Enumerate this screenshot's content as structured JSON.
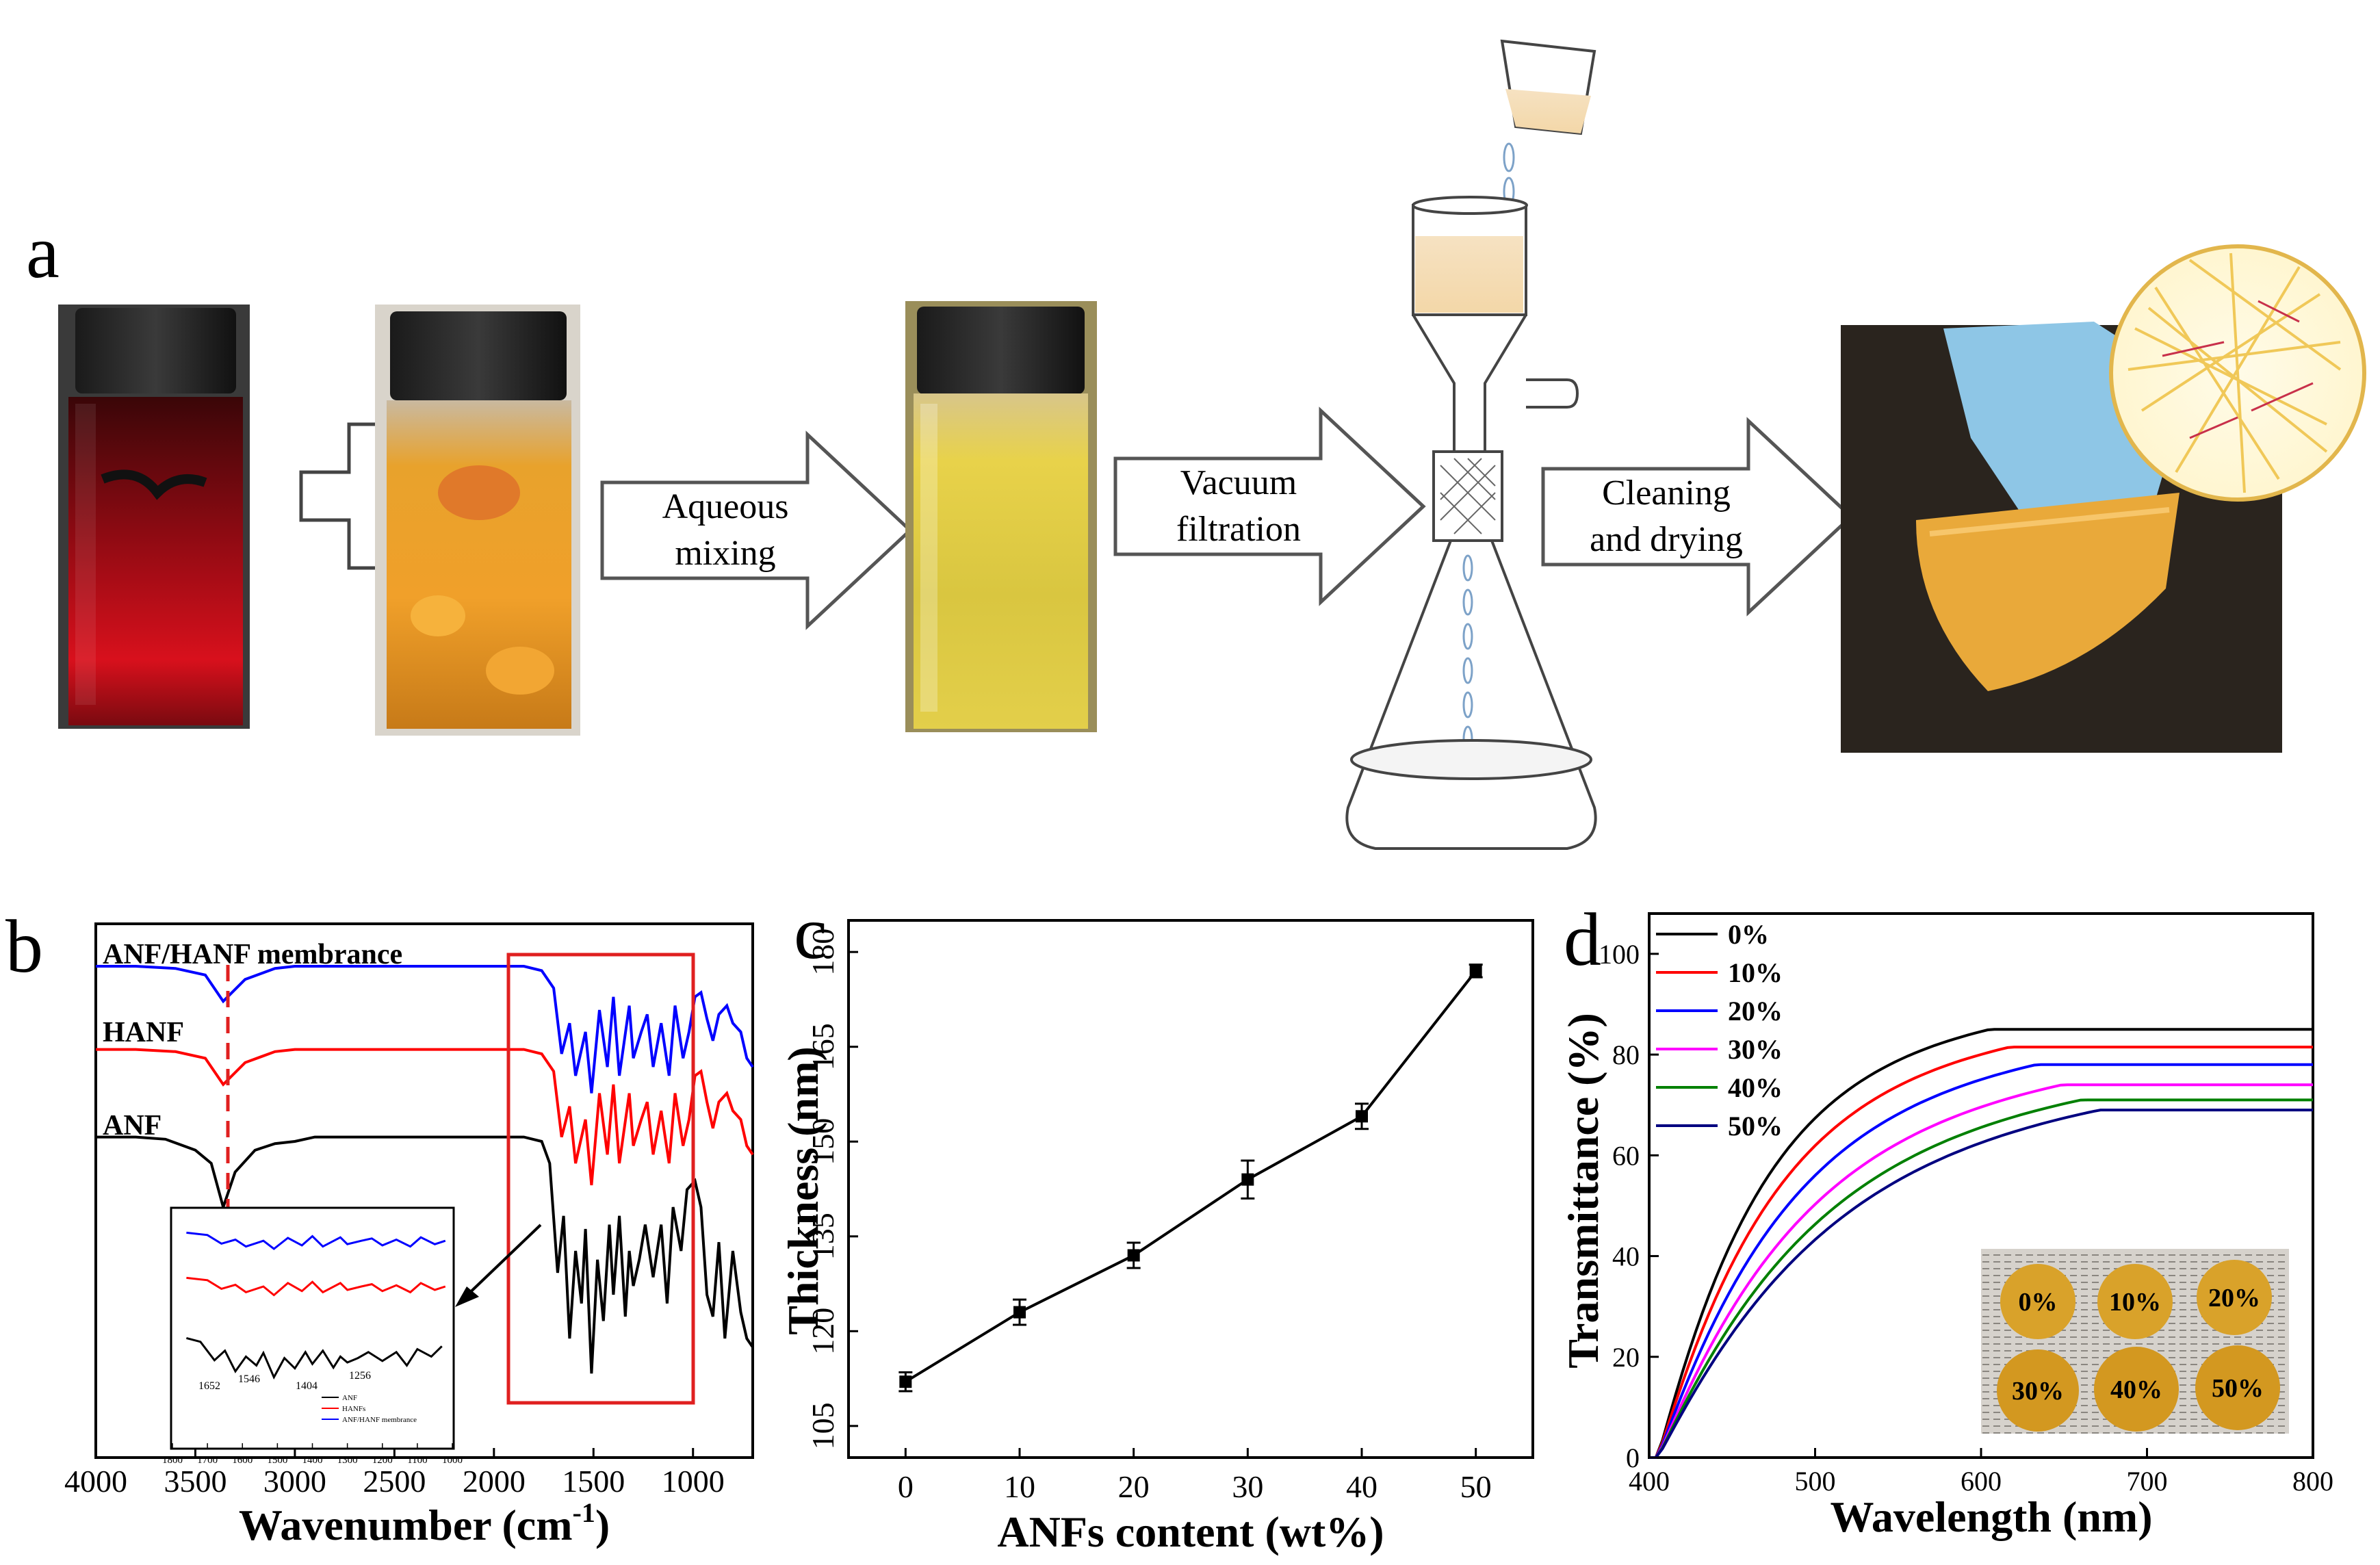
{
  "panel_labels": {
    "a": "a",
    "b": "b",
    "c": "c",
    "d": "d"
  },
  "process": {
    "step1": "Aqueous mixing",
    "step1_l1": "Aqueous",
    "step1_l2": "mixing",
    "step2_l1": "Vacuum",
    "step2_l2": "filtration",
    "step3_l1": "Cleaning",
    "step3_l2": "and drying",
    "colors": {
      "red_solution": "#c0101a",
      "orange_gel": "#f2a52a",
      "yellow_solution": "#e9d54a",
      "membrane": "#e9a93a",
      "glove": "#8ec6e6"
    }
  },
  "chart_data": [
    {
      "panel": "b",
      "type": "line",
      "xlabel": "Wavenumber (cm",
      "xlabel_sup": "-1",
      "xlabel_close": ")",
      "xlim": [
        4000,
        700
      ],
      "x_ticks": [
        4000,
        3500,
        3000,
        2500,
        2000,
        1500,
        1000
      ],
      "series": [
        {
          "name": "ANF/HANF membrance",
          "color": "#0000ff",
          "x": [
            4000,
            3800,
            3600,
            3450,
            3360,
            3250,
            3100,
            3000,
            2800,
            2600,
            2400,
            2200,
            2000,
            1850,
            1760,
            1700,
            1660,
            1620,
            1590,
            1540,
            1510,
            1470,
            1430,
            1400,
            1370,
            1320,
            1300,
            1260,
            1230,
            1200,
            1160,
            1120,
            1090,
            1050,
            1020,
            990,
            960,
            930,
            900,
            870,
            830,
            800,
            760,
            730,
            700
          ],
          "y": [
            0.95,
            0.95,
            0.945,
            0.93,
            0.87,
            0.92,
            0.945,
            0.95,
            0.95,
            0.95,
            0.95,
            0.95,
            0.95,
            0.95,
            0.94,
            0.9,
            0.75,
            0.82,
            0.7,
            0.8,
            0.66,
            0.85,
            0.72,
            0.88,
            0.7,
            0.86,
            0.74,
            0.8,
            0.84,
            0.72,
            0.82,
            0.7,
            0.86,
            0.74,
            0.8,
            0.88,
            0.89,
            0.83,
            0.78,
            0.84,
            0.86,
            0.82,
            0.8,
            0.74,
            0.72
          ]
        },
        {
          "name": "HANF",
          "color": "#ff0000",
          "x": [
            4000,
            3800,
            3600,
            3450,
            3360,
            3250,
            3100,
            3000,
            2800,
            2600,
            2400,
            2200,
            2000,
            1850,
            1760,
            1700,
            1660,
            1620,
            1590,
            1540,
            1510,
            1470,
            1430,
            1400,
            1370,
            1320,
            1300,
            1260,
            1230,
            1200,
            1160,
            1120,
            1090,
            1050,
            1020,
            990,
            960,
            930,
            900,
            870,
            830,
            800,
            760,
            730,
            700
          ],
          "y": [
            0.76,
            0.76,
            0.755,
            0.74,
            0.68,
            0.73,
            0.755,
            0.76,
            0.76,
            0.76,
            0.76,
            0.76,
            0.76,
            0.76,
            0.75,
            0.71,
            0.56,
            0.63,
            0.5,
            0.6,
            0.45,
            0.66,
            0.52,
            0.68,
            0.5,
            0.66,
            0.54,
            0.6,
            0.64,
            0.52,
            0.62,
            0.5,
            0.66,
            0.54,
            0.6,
            0.7,
            0.71,
            0.64,
            0.58,
            0.64,
            0.66,
            0.62,
            0.6,
            0.54,
            0.52
          ]
        },
        {
          "name": "ANF",
          "color": "#000000",
          "x": [
            4000,
            3800,
            3650,
            3500,
            3420,
            3360,
            3300,
            3200,
            3100,
            3000,
            2900,
            2800,
            2600,
            2400,
            2200,
            2000,
            1850,
            1760,
            1720,
            1680,
            1650,
            1620,
            1590,
            1560,
            1540,
            1510,
            1480,
            1450,
            1420,
            1400,
            1370,
            1340,
            1320,
            1300,
            1270,
            1240,
            1200,
            1160,
            1130,
            1100,
            1060,
            1030,
            990,
            960,
            930,
            900,
            870,
            840,
            800,
            760,
            730,
            700
          ],
          "y": [
            0.56,
            0.56,
            0.555,
            0.53,
            0.5,
            0.4,
            0.48,
            0.53,
            0.545,
            0.55,
            0.56,
            0.56,
            0.56,
            0.56,
            0.56,
            0.56,
            0.56,
            0.55,
            0.5,
            0.25,
            0.38,
            0.1,
            0.3,
            0.18,
            0.35,
            0.02,
            0.28,
            0.14,
            0.36,
            0.2,
            0.38,
            0.15,
            0.3,
            0.22,
            0.28,
            0.36,
            0.24,
            0.36,
            0.18,
            0.4,
            0.3,
            0.44,
            0.46,
            0.4,
            0.2,
            0.15,
            0.32,
            0.1,
            0.3,
            0.16,
            0.1,
            0.08
          ]
        }
      ],
      "annotation": "red highlighted region 1800-1000 cm-1 (zoomed in inset)",
      "inset": {
        "xlim": [
          1800,
          1000
        ],
        "x_ticks": [
          1800,
          1700,
          1600,
          1500,
          1400,
          1300,
          1200,
          1100,
          1000
        ],
        "peak_labels": [
          "1652",
          "1546",
          "1404",
          "1256"
        ],
        "legend": [
          "ANF",
          "HANFs",
          "ANF/HANF membrance"
        ]
      }
    },
    {
      "panel": "c",
      "type": "line",
      "xlabel": "ANFs content (wt%)",
      "ylabel": "Thickness (nm)",
      "xlim": [
        -5,
        55
      ],
      "ylim": [
        100,
        185
      ],
      "x_ticks": [
        0,
        10,
        20,
        30,
        40,
        50
      ],
      "y_ticks": [
        105,
        120,
        135,
        150,
        165,
        180
      ],
      "x": [
        0,
        10,
        20,
        30,
        40,
        50
      ],
      "values": [
        112,
        123,
        132,
        144,
        154,
        177
      ],
      "errors": [
        1.5,
        2,
        2,
        3,
        2,
        1
      ]
    },
    {
      "panel": "d",
      "type": "line",
      "xlabel": "Wavelength (nm)",
      "ylabel": "Transmittance (%)",
      "xlim": [
        400,
        800
      ],
      "ylim": [
        0,
        108
      ],
      "x_ticks": [
        400,
        500,
        600,
        700,
        800
      ],
      "y_ticks": [
        0,
        20,
        40,
        60,
        80,
        100
      ],
      "series": [
        {
          "name": "0%",
          "color": "#000000",
          "final": 84,
          "k": 60
        },
        {
          "name": "10%",
          "color": "#ff0000",
          "final": 80.5,
          "k": 66
        },
        {
          "name": "20%",
          "color": "#0000ff",
          "final": 77,
          "k": 74
        },
        {
          "name": "30%",
          "color": "#ff00ff",
          "final": 73,
          "k": 82
        },
        {
          "name": "40%",
          "color": "#008000",
          "final": 70,
          "k": 88
        },
        {
          "name": "50%",
          "color": "#000080",
          "final": 68,
          "k": 94
        }
      ],
      "inset_labels": [
        "0%",
        "10%",
        "20%",
        "30%",
        "40%",
        "50%"
      ]
    }
  ]
}
